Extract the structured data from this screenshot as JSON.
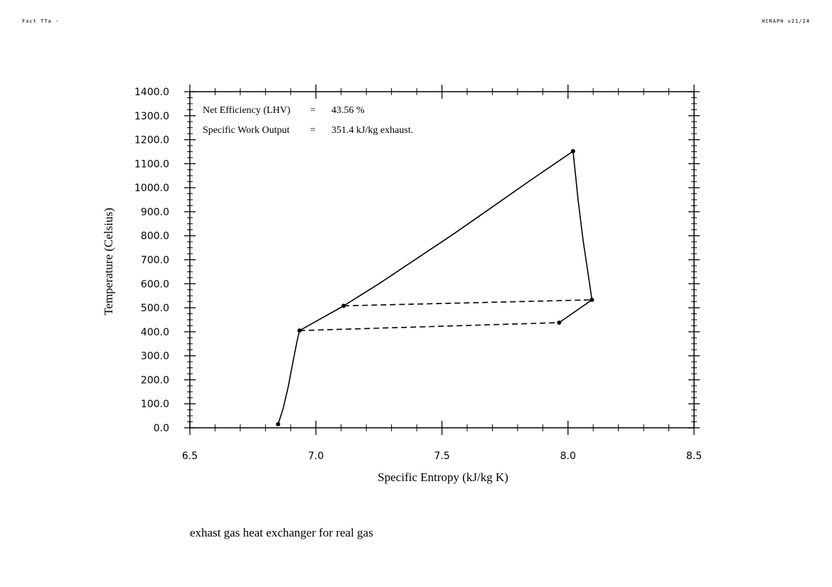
{
  "header": {
    "left_text": "Fact TTa -",
    "right_text": "HCRAPH v21/24"
  },
  "caption": "exhast gas heat exchanger for real gas",
  "chart_data": {
    "type": "line",
    "title": "",
    "xlabel": "Specific Entropy   (kJ/kg K)",
    "ylabel": "Temperature   (Celsius)",
    "xlim": [
      6.5,
      8.5
    ],
    "ylim": [
      0,
      1400
    ],
    "x_ticks": [
      6.5,
      7.0,
      7.5,
      8.0,
      8.5
    ],
    "x_tick_labels": [
      "6.5",
      "7.0",
      "7.5",
      "8.0",
      "8.5"
    ],
    "y_ticks": [
      0,
      100,
      200,
      300,
      400,
      500,
      600,
      700,
      800,
      900,
      1000,
      1100,
      1200,
      1300,
      1400
    ],
    "y_tick_labels": [
      "0.0",
      "100.0",
      "200.0",
      "300.0",
      "400.0",
      "500.0",
      "600.0",
      "700.0",
      "800.0",
      "900.0",
      "1000.0",
      "1100.0",
      "1200.0",
      "1300.0",
      "1400.0"
    ],
    "grid": false,
    "annotations": [
      {
        "label": "Net Efficiency (LHV)",
        "eq": "=",
        "value": "43.56 %"
      },
      {
        "label": "Specific Work Output",
        "eq": "=",
        "value": "351.4 kJ/kg exhaust."
      }
    ],
    "series": [
      {
        "style": "solid",
        "x": [
          6.85,
          6.87,
          6.89,
          6.91,
          6.925,
          6.935
        ],
        "y": [
          15,
          80,
          170,
          280,
          360,
          405
        ]
      },
      {
        "style": "solid",
        "x": [
          6.935,
          7.11
        ],
        "y": [
          405,
          508
        ]
      },
      {
        "style": "solid",
        "x": [
          7.11,
          7.25,
          7.4,
          7.55,
          7.7,
          7.85,
          8.02
        ],
        "y": [
          508,
          600,
          705,
          810,
          920,
          1030,
          1152
        ]
      },
      {
        "style": "solid",
        "x": [
          8.02,
          8.04,
          8.06,
          8.08,
          8.095
        ],
        "y": [
          1152,
          950,
          780,
          640,
          533
        ]
      },
      {
        "style": "solid",
        "x": [
          8.095,
          7.965
        ],
        "y": [
          533,
          438
        ]
      },
      {
        "style": "dashed",
        "x": [
          7.11,
          8.095
        ],
        "y": [
          508,
          533
        ]
      },
      {
        "style": "dashed",
        "x": [
          6.935,
          7.965
        ],
        "y": [
          405,
          438
        ]
      }
    ],
    "points": [
      {
        "x": 6.85,
        "y": 15
      },
      {
        "x": 6.935,
        "y": 405
      },
      {
        "x": 7.11,
        "y": 508
      },
      {
        "x": 8.02,
        "y": 1152
      },
      {
        "x": 8.095,
        "y": 533
      },
      {
        "x": 7.965,
        "y": 438
      }
    ]
  }
}
